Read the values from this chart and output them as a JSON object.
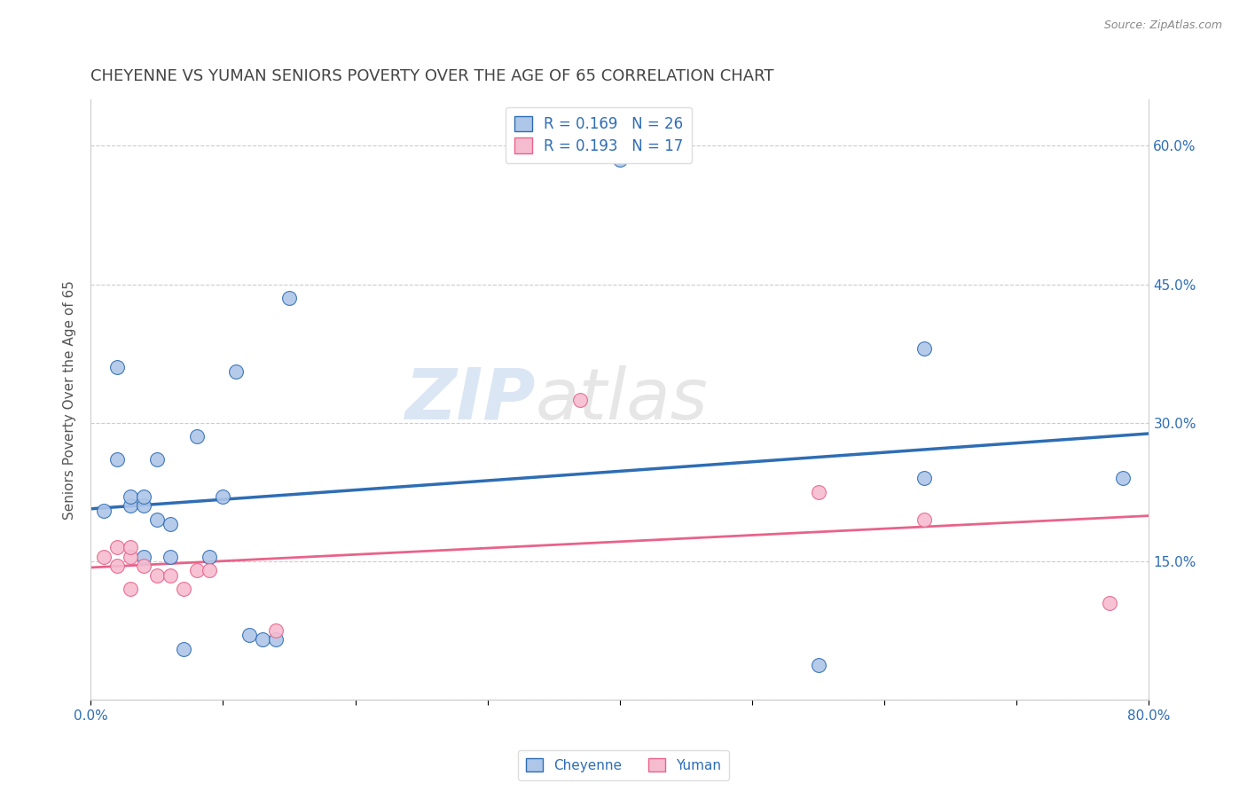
{
  "title": "CHEYENNE VS YUMAN SENIORS POVERTY OVER THE AGE OF 65 CORRELATION CHART",
  "source": "Source: ZipAtlas.com",
  "ylabel": "Seniors Poverty Over the Age of 65",
  "xlim": [
    0.0,
    0.8
  ],
  "ylim": [
    0.0,
    0.65
  ],
  "xtick_positions": [
    0.0,
    0.1,
    0.2,
    0.3,
    0.4,
    0.5,
    0.6,
    0.7,
    0.8
  ],
  "xtick_labels": [
    "0.0%",
    "",
    "",
    "",
    "",
    "",
    "",
    "",
    "80.0%"
  ],
  "ytick_positions": [
    0.0,
    0.15,
    0.3,
    0.45,
    0.6
  ],
  "ytick_labels_right": [
    "",
    "15.0%",
    "30.0%",
    "45.0%",
    "60.0%"
  ],
  "cheyenne_x": [
    0.01,
    0.02,
    0.02,
    0.03,
    0.03,
    0.04,
    0.04,
    0.04,
    0.05,
    0.05,
    0.06,
    0.06,
    0.07,
    0.08,
    0.09,
    0.1,
    0.11,
    0.12,
    0.13,
    0.14,
    0.15,
    0.4,
    0.55,
    0.63,
    0.63,
    0.78
  ],
  "cheyenne_y": [
    0.205,
    0.36,
    0.26,
    0.21,
    0.22,
    0.21,
    0.22,
    0.155,
    0.26,
    0.195,
    0.19,
    0.155,
    0.055,
    0.285,
    0.155,
    0.22,
    0.355,
    0.07,
    0.065,
    0.065,
    0.435,
    0.585,
    0.038,
    0.38,
    0.24,
    0.24
  ],
  "yuman_x": [
    0.01,
    0.02,
    0.02,
    0.03,
    0.03,
    0.03,
    0.04,
    0.05,
    0.06,
    0.07,
    0.08,
    0.09,
    0.14,
    0.37,
    0.55,
    0.63,
    0.77
  ],
  "yuman_y": [
    0.155,
    0.165,
    0.145,
    0.155,
    0.165,
    0.12,
    0.145,
    0.135,
    0.135,
    0.12,
    0.14,
    0.14,
    0.075,
    0.325,
    0.225,
    0.195,
    0.105
  ],
  "cheyenne_color": "#aec6e8",
  "yuman_color": "#f5bcd0",
  "cheyenne_line_color": "#2e6db4",
  "yuman_line_color": "#e8638a",
  "cheyenne_R": 0.169,
  "cheyenne_N": 26,
  "yuman_R": 0.193,
  "yuman_N": 17,
  "watermark_zip": "ZIP",
  "watermark_atlas": "atlas",
  "title_color": "#444444",
  "axis_label_color": "#555555",
  "legend_text_color": "#2e6db4",
  "grid_color": "#cccccc",
  "title_fontsize": 13,
  "axis_label_fontsize": 11,
  "tick_fontsize": 11,
  "source_color": "#888888"
}
